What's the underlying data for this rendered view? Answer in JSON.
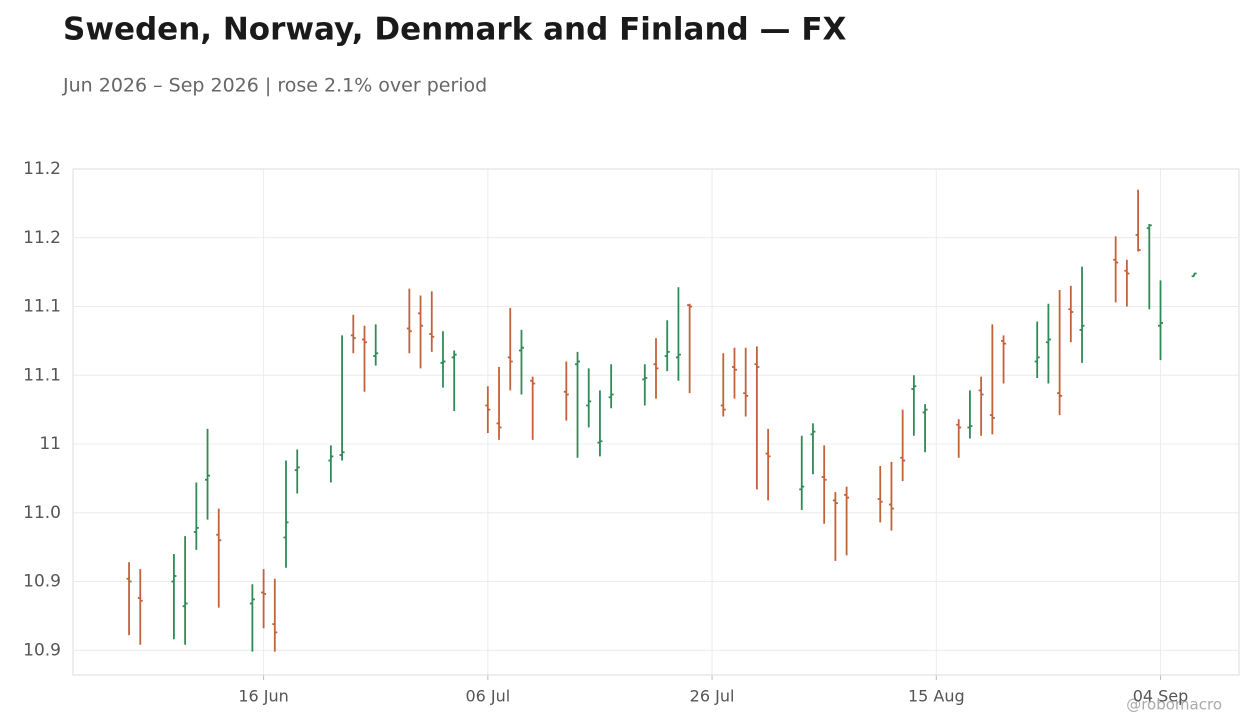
{
  "chart_data": {
    "type": "ohlc",
    "title": "Sweden, Norway, Denmark and Finland — FX",
    "subtitle": "Jun 2026 – Sep 2026 | rose 2.1% over period",
    "watermark": "@robomacro",
    "up_color": "#2e8a57",
    "down_color": "#c1623b",
    "grid": true,
    "x": [
      "2026-06-04",
      "2026-06-05",
      "2026-06-08",
      "2026-06-09",
      "2026-06-10",
      "2026-06-11",
      "2026-06-12",
      "2026-06-15",
      "2026-06-16",
      "2026-06-17",
      "2026-06-18",
      "2026-06-19",
      "2026-06-22",
      "2026-06-23",
      "2026-06-24",
      "2026-06-25",
      "2026-06-26",
      "2026-06-29",
      "2026-06-30",
      "2026-07-01",
      "2026-07-02",
      "2026-07-03",
      "2026-07-06",
      "2026-07-07",
      "2026-07-08",
      "2026-07-09",
      "2026-07-10",
      "2026-07-13",
      "2026-07-14",
      "2026-07-15",
      "2026-07-16",
      "2026-07-17",
      "2026-07-20",
      "2026-07-21",
      "2026-07-22",
      "2026-07-23",
      "2026-07-24",
      "2026-07-27",
      "2026-07-28",
      "2026-07-29",
      "2026-07-30",
      "2026-07-31",
      "2026-08-03",
      "2026-08-04",
      "2026-08-05",
      "2026-08-06",
      "2026-08-07",
      "2026-08-10",
      "2026-08-11",
      "2026-08-12",
      "2026-08-13",
      "2026-08-14",
      "2026-08-17",
      "2026-08-18",
      "2026-08-19",
      "2026-08-20",
      "2026-08-21",
      "2026-08-24",
      "2026-08-25",
      "2026-08-26",
      "2026-08-27",
      "2026-08-28",
      "2026-08-31",
      "2026-09-01",
      "2026-09-02",
      "2026-09-03",
      "2026-09-04",
      "2026-09-07"
    ],
    "open": [
      10.902,
      10.888,
      10.9,
      10.882,
      10.936,
      10.974,
      10.934,
      10.884,
      10.892,
      10.869,
      10.932,
      10.981,
      10.988,
      10.992,
      11.079,
      11.076,
      11.064,
      11.084,
      11.095,
      11.08,
      11.059,
      11.063,
      11.028,
      11.015,
      11.063,
      11.068,
      11.046,
      11.038,
      11.058,
      11.028,
      11.001,
      11.034,
      11.047,
      11.058,
      11.064,
      11.063,
      11.101,
      11.028,
      11.056,
      11.037,
      11.058,
      10.993,
      10.967,
      11.007,
      10.976,
      10.959,
      10.963,
      10.96,
      10.956,
      10.99,
      11.04,
      11.023,
      11.014,
      11.012,
      11.039,
      11.021,
      11.075,
      11.06,
      11.074,
      11.037,
      11.098,
      11.083,
      11.134,
      11.126,
      11.152,
      11.157,
      11.086,
      11.122
    ],
    "high": [
      10.914,
      10.909,
      10.92,
      10.933,
      10.972,
      11.011,
      10.953,
      10.898,
      10.909,
      10.902,
      10.988,
      10.996,
      10.999,
      11.079,
      11.094,
      11.086,
      11.087,
      11.113,
      11.108,
      11.111,
      11.082,
      11.068,
      11.042,
      11.056,
      11.099,
      11.083,
      11.049,
      11.06,
      11.067,
      11.055,
      11.039,
      11.058,
      11.058,
      11.077,
      11.09,
      11.114,
      11.102,
      11.066,
      11.07,
      11.07,
      11.071,
      11.011,
      11.006,
      11.015,
      10.999,
      10.965,
      10.969,
      10.984,
      10.987,
      11.025,
      11.05,
      11.029,
      11.018,
      11.039,
      11.049,
      11.087,
      11.079,
      11.089,
      11.102,
      11.112,
      11.115,
      11.129,
      11.151,
      11.134,
      11.185,
      11.16,
      11.119,
      11.124
    ],
    "low": [
      10.861,
      10.854,
      10.858,
      10.854,
      10.923,
      10.945,
      10.881,
      10.849,
      10.866,
      10.849,
      10.91,
      10.964,
      10.972,
      10.988,
      11.066,
      11.038,
      11.057,
      11.066,
      11.055,
      11.067,
      11.041,
      11.024,
      11.008,
      11.003,
      11.039,
      11.036,
      11.003,
      11.017,
      10.99,
      11.012,
      10.991,
      11.026,
      11.028,
      11.033,
      11.053,
      11.046,
      11.037,
      11.02,
      11.033,
      11.02,
      10.967,
      10.959,
      10.952,
      10.978,
      10.942,
      10.915,
      10.919,
      10.943,
      10.937,
      10.973,
      11.006,
      10.994,
      10.99,
      11.004,
      11.006,
      11.007,
      11.044,
      11.048,
      11.044,
      11.021,
      11.074,
      11.059,
      11.103,
      11.1,
      11.14,
      11.098,
      11.061,
      11.122
    ],
    "close": [
      10.9,
      10.886,
      10.904,
      10.884,
      10.939,
      10.977,
      10.93,
      10.887,
      10.891,
      10.863,
      10.943,
      10.983,
      10.991,
      10.994,
      11.077,
      11.074,
      11.066,
      11.082,
      11.086,
      11.078,
      11.06,
      11.065,
      11.025,
      11.012,
      11.06,
      11.07,
      11.044,
      11.036,
      11.06,
      11.031,
      11.002,
      11.036,
      11.048,
      11.055,
      11.067,
      11.065,
      11.1,
      11.025,
      11.054,
      11.035,
      11.056,
      10.991,
      10.969,
      11.009,
      10.974,
      10.957,
      10.961,
      10.958,
      10.953,
      10.988,
      11.042,
      11.025,
      11.012,
      11.013,
      11.036,
      11.019,
      11.073,
      11.063,
      11.076,
      11.035,
      11.096,
      11.086,
      11.132,
      11.124,
      11.141,
      11.159,
      11.088,
      11.124
    ],
    "xlim": [
      "2026-05-30",
      "2026-09-11"
    ],
    "xticks": [
      {
        "value": "2026-06-16",
        "label": "16 Jun"
      },
      {
        "value": "2026-07-06",
        "label": "06 Jul"
      },
      {
        "value": "2026-07-26",
        "label": "26 Jul"
      },
      {
        "value": "2026-08-15",
        "label": "15 Aug"
      },
      {
        "value": "2026-09-04",
        "label": "04 Sep"
      }
    ],
    "ylim": [
      10.832,
      11.2
    ],
    "yticks": [
      {
        "value": 10.85,
        "label": "10.9"
      },
      {
        "value": 10.9,
        "label": "10.9"
      },
      {
        "value": 10.95,
        "label": "11.0"
      },
      11,
      {
        "value": 11.05,
        "label": "11.1"
      },
      {
        "value": 11.1,
        "label": "11.1"
      },
      {
        "value": 11.15,
        "label": "11.2"
      },
      {
        "value": 11.2,
        "label": "11.2"
      }
    ]
  }
}
